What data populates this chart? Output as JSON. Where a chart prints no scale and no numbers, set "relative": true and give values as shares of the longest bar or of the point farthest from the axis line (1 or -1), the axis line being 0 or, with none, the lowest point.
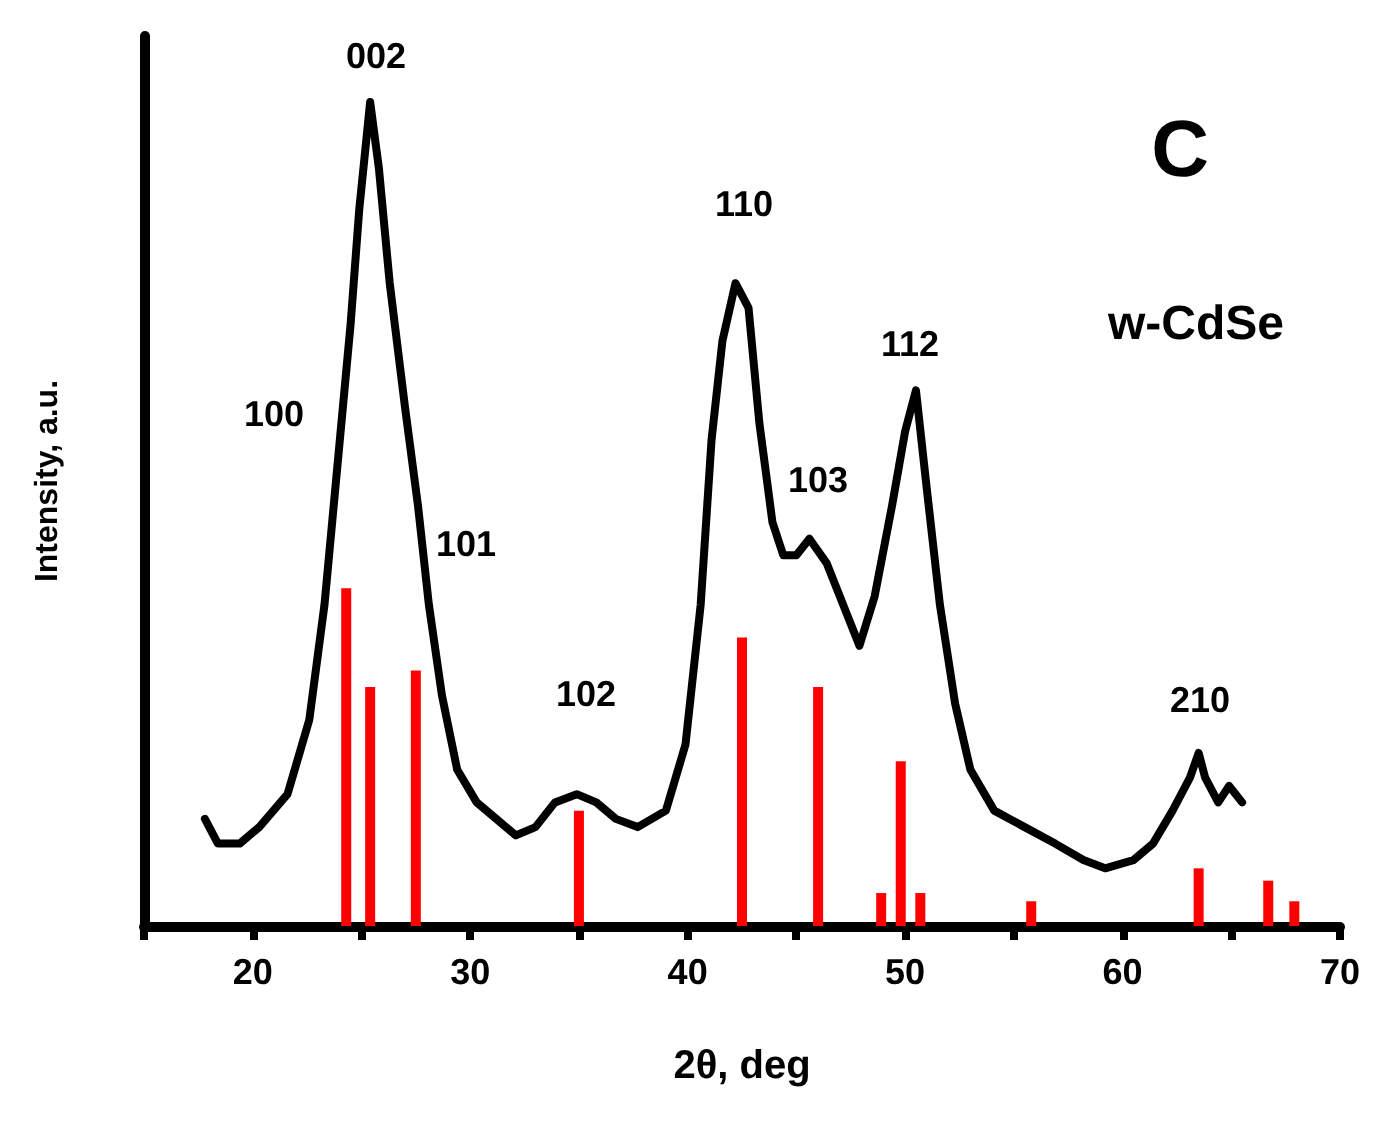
{
  "chart_data": {
    "type": "line",
    "relative": true,
    "xlabel": "2θ, deg",
    "ylabel": "Intensity, a.u.",
    "xlim": [
      15,
      70
    ],
    "xticks": [
      {
        "value": 15,
        "label": null
      },
      20,
      {
        "value": 25,
        "label": null
      },
      30,
      {
        "value": 35,
        "label": null
      },
      40,
      {
        "value": 45,
        "label": null
      },
      50,
      {
        "value": 55,
        "label": null
      },
      60,
      {
        "value": 65,
        "label": null
      },
      70
    ],
    "tick_labels": "x",
    "grid": false,
    "marker": "none",
    "line_style": "solid",
    "series": [
      {
        "color": "#000000",
        "x": [
          17.8,
          18.4,
          19.4,
          20.3,
          21.6,
          22.6,
          23.3,
          23.9,
          24.5,
          24.9,
          25.4,
          25.8,
          26.3,
          27.0,
          27.6,
          28.1,
          28.7,
          29.4,
          30.3,
          31.2,
          32.1,
          33.0,
          33.9,
          34.9,
          35.8,
          36.7,
          37.7,
          39.0,
          39.9,
          40.6,
          41.1,
          41.6,
          42.2,
          42.8,
          43.3,
          43.9,
          44.4,
          45.0,
          45.6,
          46.4,
          47.3,
          47.9,
          48.6,
          49.4,
          50.0,
          50.5,
          51.0,
          51.6,
          52.3,
          53.0,
          54.1,
          55.5,
          56.9,
          58.2,
          59.2,
          60.5,
          61.4,
          62.3,
          63.1,
          63.5,
          63.8,
          64.4,
          64.9,
          65.5
        ],
        "values": [
          0.13,
          0.1,
          0.1,
          0.12,
          0.16,
          0.25,
          0.39,
          0.56,
          0.73,
          0.87,
          1,
          0.92,
          0.78,
          0.63,
          0.51,
          0.39,
          0.28,
          0.19,
          0.15,
          0.13,
          0.11,
          0.12,
          0.15,
          0.16,
          0.15,
          0.13,
          0.12,
          0.14,
          0.22,
          0.39,
          0.59,
          0.71,
          0.78,
          0.75,
          0.61,
          0.49,
          0.45,
          0.45,
          0.47,
          0.44,
          0.38,
          0.34,
          0.4,
          0.51,
          0.6,
          0.65,
          0.53,
          0.39,
          0.27,
          0.19,
          0.14,
          0.12,
          0.1,
          0.08,
          0.07,
          0.08,
          0.1,
          0.14,
          0.18,
          0.21,
          0.18,
          0.15,
          0.17,
          0.15
        ]
      },
      {
        "type": "bar",
        "color": "#ff0000",
        "x": [
          24.3,
          25.4,
          27.5,
          35.0,
          42.5,
          46.0,
          48.9,
          49.8,
          50.7,
          55.8,
          63.5,
          66.7,
          67.9
        ],
        "values": [
          0.41,
          0.29,
          0.31,
          0.14,
          0.35,
          0.29,
          0.04,
          0.2,
          0.04,
          0.03,
          0.07,
          0.055,
          0.03
        ]
      }
    ],
    "annotations": [
      "002",
      "100",
      "101",
      "102",
      "110",
      "103",
      "112",
      "210",
      "C",
      "w-CdSe"
    ]
  }
}
